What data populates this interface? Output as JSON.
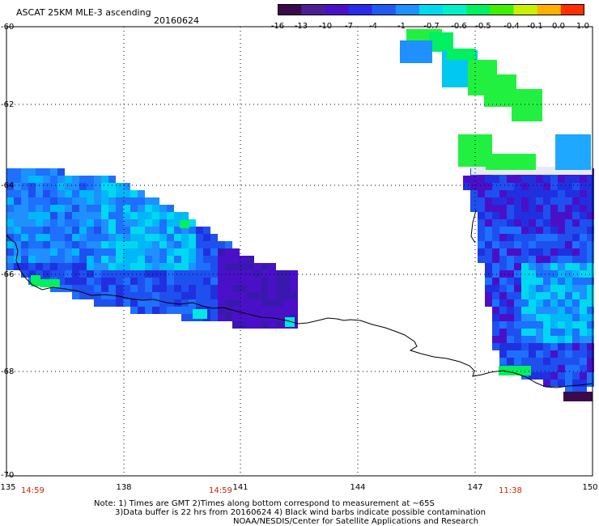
{
  "header": {
    "title": "ASCAT 25KM MLE-3 ascending",
    "date": "20160624"
  },
  "colorbar": {
    "labels": [
      "-16",
      "-13",
      "-10",
      "-7",
      "-4",
      "-1",
      "-0.7",
      "-0.6",
      "-0.5",
      "-0.4",
      "-0.1",
      "0.0",
      "1.0"
    ],
    "colors": [
      "#3a0a4a",
      "#4b1f93",
      "#4a10c8",
      "#2a2be8",
      "#1f5bf0",
      "#1e90ff",
      "#00d8f0",
      "#00f0c8",
      "#00f060",
      "#40f000",
      "#c8f000",
      "#ffb000",
      "#ff3000"
    ]
  },
  "map": {
    "lat_labels": [
      "-60",
      "-62",
      "-64",
      "-66",
      "-68",
      "-70"
    ],
    "lon_labels": [
      "135",
      "138",
      "141",
      "144",
      "147",
      "150"
    ],
    "time_labels": [
      "14:59",
      "14:59",
      "11:38"
    ],
    "time_color": "#cc2200"
  },
  "notes": {
    "line1": "Note: 1) Times are GMT 2)Times along bottom correspond to measurement at ~65S",
    "line2": "3)Data buffer is 22 hrs from 20160624 4) Black wind barbs indicate possible contamination",
    "line3": "NOAA/NESDIS/Center for Satellite Applications and Research"
  }
}
